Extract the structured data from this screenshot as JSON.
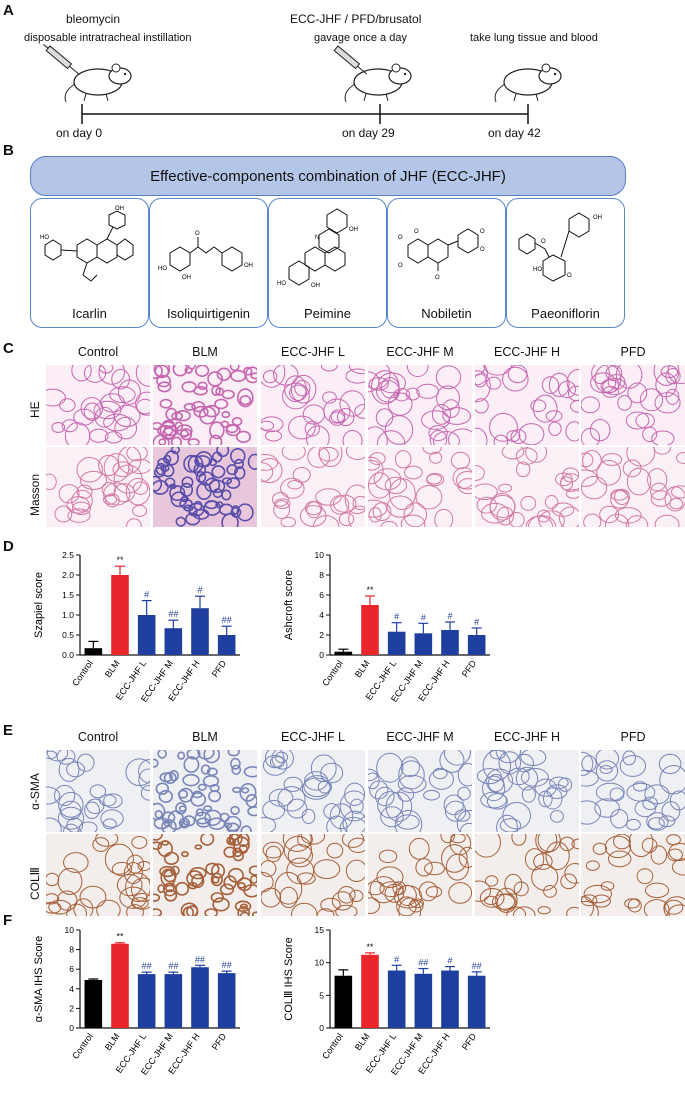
{
  "panel_letters": {
    "a": "A",
    "b": "B",
    "c": "C",
    "d": "D",
    "e": "E",
    "f": "F"
  },
  "panel_a": {
    "bleomycin": "bleomycin",
    "instillation": "disposable intratracheal instillation",
    "treatment": "ECC-JHF / PFD/brusatol",
    "gavage": "gavage once a day",
    "harvest": "take lung tissue and blood",
    "day0": "on day 0",
    "day29": "on day 29",
    "day42": "on day 42"
  },
  "panel_b": {
    "banner": "Effective-components combination of JHF (ECC-JHF)",
    "compounds": [
      "Icarlin",
      "Isoliquirtigenin",
      "Peimine",
      "Nobiletin",
      "Paeoniflorin"
    ]
  },
  "groups": [
    "Control",
    "BLM",
    "ECC-JHF L",
    "ECC-JHF M",
    "ECC-JHF H",
    "PFD"
  ],
  "panel_c_rows": [
    "HE",
    "Masson"
  ],
  "panel_e_rows": [
    "α-SMA",
    "COLⅢ"
  ],
  "colors": {
    "control": "#000000",
    "blm": "#e8262b",
    "treat": "#1f3fa0",
    "banner": "#b4c6e7",
    "box_border": "#5b86c9"
  },
  "chart_data": [
    {
      "type": "bar",
      "ylabel": "Szapiel score",
      "categories": [
        "Control",
        "BLM",
        "ECC-JHF L",
        "ECC-JHF M",
        "ECC-JHF H",
        "PFD"
      ],
      "values": [
        0.17,
        2.0,
        1.0,
        0.67,
        1.17,
        0.5
      ],
      "errors": [
        0.17,
        0.22,
        0.36,
        0.2,
        0.3,
        0.22
      ],
      "labels": [
        "",
        "**",
        "#",
        "##",
        "#",
        "##"
      ],
      "ylim": [
        0,
        2.5
      ],
      "yticks": [
        "0.0",
        "0.5",
        "1.0",
        "1.5",
        "2.0",
        "2.5"
      ]
    },
    {
      "type": "bar",
      "ylabel": "Ashcroft score",
      "categories": [
        "Control",
        "BLM",
        "ECC-JHF L",
        "ECC-JHF M",
        "ECC-JHF H",
        "PFD"
      ],
      "values": [
        0.33,
        5.0,
        2.33,
        2.17,
        2.5,
        2.0
      ],
      "errors": [
        0.25,
        0.9,
        0.9,
        1.0,
        0.8,
        0.7
      ],
      "labels": [
        "",
        "**",
        "#",
        "#",
        "#",
        "#"
      ],
      "ylim": [
        0,
        10
      ],
      "yticks": [
        "0",
        "2",
        "4",
        "6",
        "8",
        "10"
      ]
    },
    {
      "type": "bar",
      "ylabel": "α-SMA IHS Score",
      "categories": [
        "Control",
        "BLM",
        "ECC-JHF L",
        "ECC-JHF M",
        "ECC-JHF H",
        "PFD"
      ],
      "values": [
        4.9,
        8.6,
        5.5,
        5.5,
        6.2,
        5.6
      ],
      "errors": [
        0.1,
        0.1,
        0.2,
        0.2,
        0.2,
        0.2
      ],
      "labels": [
        "",
        "**",
        "##",
        "##",
        "##",
        "##"
      ],
      "ylim": [
        0,
        10
      ],
      "yticks": [
        "0",
        "2",
        "4",
        "6",
        "8",
        "10"
      ]
    },
    {
      "type": "bar",
      "ylabel": "COLⅢ IHS Score",
      "categories": [
        "Control",
        "BLM",
        "ECC-JHF L",
        "ECC-JHF M",
        "ECC-JHF H",
        "PFD"
      ],
      "values": [
        8.0,
        11.2,
        8.8,
        8.3,
        8.8,
        8.0
      ],
      "errors": [
        0.9,
        0.3,
        0.8,
        0.8,
        0.6,
        0.6
      ],
      "labels": [
        "",
        "**",
        "#",
        "##",
        "#",
        "##"
      ],
      "ylim": [
        0,
        15
      ],
      "yticks": [
        "0",
        "5",
        "10",
        "15"
      ]
    }
  ]
}
